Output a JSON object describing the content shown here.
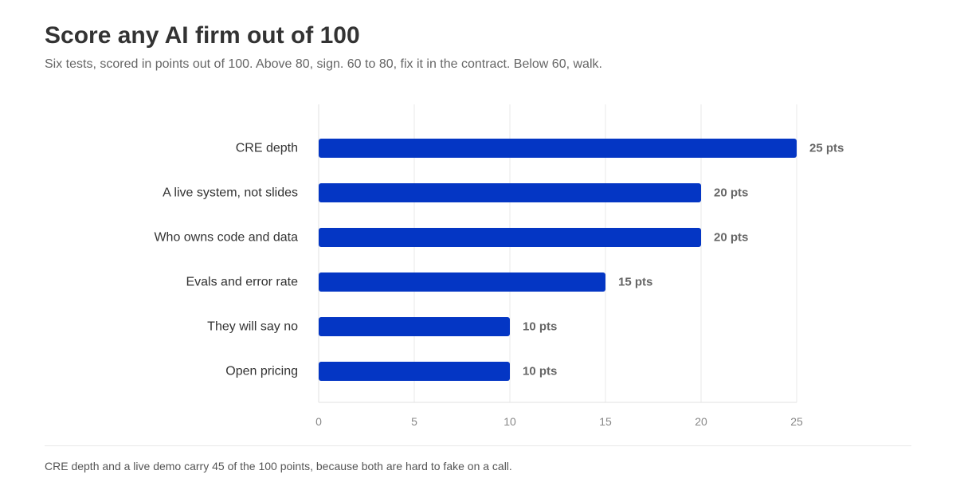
{
  "header": {
    "title": "Score any AI firm out of 100",
    "subtitle": "Six tests, scored in points out of 100. Above 80, sign. 60 to 80, fix it in the contract. Below 60, walk."
  },
  "footnote": "CRE depth and a live demo carry 45 of the 100 points, because both are hard to fake on a call.",
  "colors": {
    "bar": "#0436c4",
    "grid": "#f0f0f0",
    "axis": "#e0e0e0"
  },
  "chart_data": {
    "type": "bar",
    "orientation": "horizontal",
    "categories": [
      "CRE depth",
      "A live system, not slides",
      "Who owns code and data",
      "Evals and error rate",
      "They will say no",
      "Open pricing"
    ],
    "values": [
      25,
      20,
      20,
      15,
      10,
      10
    ],
    "value_labels": [
      "25 pts",
      "20 pts",
      "20 pts",
      "15 pts",
      "10 pts",
      "10 pts"
    ],
    "xlim": [
      0,
      25
    ],
    "xticks": [
      0,
      5,
      10,
      15,
      20,
      25
    ],
    "xtick_labels": [
      "0",
      "5",
      "10",
      "15",
      "20",
      "25"
    ],
    "grid": true
  }
}
